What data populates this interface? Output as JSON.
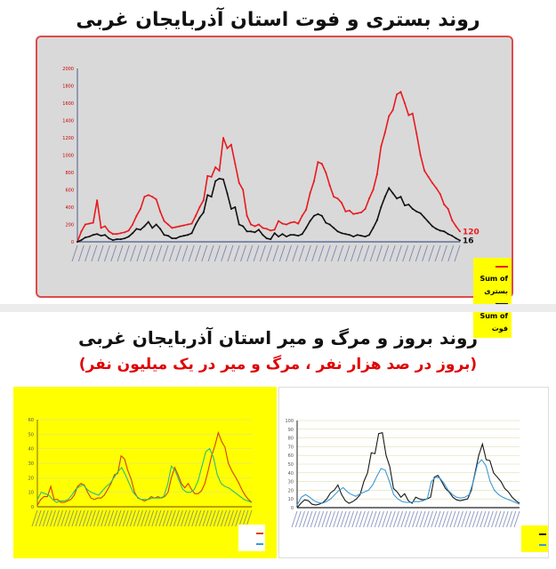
{
  "titles": {
    "top": "روند بستری و فوت استان آذربایجان غربی",
    "bottom": "روند بروز و مرگ و میر استان آذربایجان غربی",
    "bottom_sub": "(بروز در صد هزار نفر ، مرگ و میر در یک میلیون نفر)"
  },
  "chart_data": [
    {
      "type": "line",
      "ylim": [
        0,
        2000
      ],
      "yticks": [
        0,
        200,
        400,
        600,
        800,
        1000,
        1200,
        1400,
        1600,
        1800,
        2000
      ],
      "grid": false,
      "legend": "bottom-right",
      "series": [
        {
          "name": "Sum of بستری",
          "color": "#e8191e",
          "end_label": "120",
          "values": [
            0,
            120,
            200,
            210,
            220,
            480,
            160,
            180,
            120,
            90,
            90,
            100,
            110,
            130,
            200,
            300,
            380,
            520,
            540,
            520,
            490,
            350,
            240,
            200,
            160,
            170,
            180,
            190,
            200,
            210,
            300,
            400,
            480,
            760,
            750,
            860,
            820,
            1200,
            1080,
            1120,
            900,
            680,
            600,
            300,
            200,
            180,
            200,
            160,
            150,
            130,
            140,
            240,
            210,
            200,
            220,
            230,
            210,
            300,
            370,
            560,
            700,
            920,
            900,
            800,
            650,
            520,
            500,
            450,
            350,
            360,
            320,
            330,
            340,
            380,
            500,
            600,
            780,
            1100,
            1260,
            1450,
            1520,
            1700,
            1730,
            1600,
            1460,
            1480,
            1250,
            1000,
            820,
            750,
            680,
            620,
            550,
            430,
            380,
            250,
            180,
            120
          ]
        },
        {
          "name": "Sum of فوت",
          "color": "#111111",
          "end_label": "16",
          "values": [
            0,
            20,
            50,
            60,
            80,
            90,
            70,
            80,
            40,
            20,
            30,
            30,
            40,
            60,
            100,
            150,
            140,
            180,
            230,
            160,
            200,
            150,
            80,
            70,
            40,
            40,
            60,
            70,
            80,
            100,
            200,
            280,
            340,
            540,
            520,
            700,
            730,
            720,
            560,
            380,
            400,
            200,
            180,
            120,
            120,
            110,
            140,
            80,
            40,
            30,
            100,
            60,
            90,
            60,
            80,
            80,
            70,
            90,
            160,
            240,
            300,
            320,
            300,
            220,
            200,
            160,
            120,
            100,
            90,
            80,
            60,
            80,
            70,
            60,
            80,
            160,
            250,
            400,
            520,
            620,
            560,
            500,
            520,
            420,
            430,
            380,
            350,
            330,
            280,
            230,
            180,
            150,
            130,
            120,
            90,
            70,
            40,
            16
          ]
        }
      ]
    },
    {
      "type": "line",
      "ylim": [
        0,
        60
      ],
      "yticks": [
        0,
        10,
        20,
        30,
        40,
        50,
        60
      ],
      "grid": true,
      "legend": "right",
      "series": [
        {
          "color": "#d2400a",
          "values": [
            1,
            5,
            7,
            7,
            14,
            5,
            5,
            3,
            3,
            4,
            5,
            8,
            14,
            16,
            15,
            10,
            6,
            5,
            6,
            6,
            8,
            12,
            16,
            22,
            23,
            35,
            33,
            25,
            19,
            10,
            6,
            5,
            4,
            5,
            7,
            6,
            7,
            6,
            7,
            10,
            20,
            27,
            22,
            16,
            13,
            16,
            12,
            9,
            9,
            11,
            16,
            25,
            35,
            42,
            51,
            45,
            41,
            30,
            25,
            21,
            17,
            12,
            8,
            5,
            3
          ]
        },
        {
          "color": "#2bbf7a",
          "values": [
            5,
            10,
            9,
            8,
            5,
            3,
            4,
            4,
            5,
            8,
            12,
            14,
            15,
            12,
            10,
            9,
            8,
            11,
            14,
            16,
            20,
            24,
            27,
            22,
            16,
            10,
            7,
            5,
            5,
            5,
            6,
            6,
            6,
            7,
            15,
            28,
            25,
            18,
            12,
            10,
            10,
            12,
            18,
            28,
            38,
            40,
            34,
            22,
            16,
            14,
            13,
            11,
            9,
            7,
            5,
            4,
            3
          ]
        }
      ]
    },
    {
      "type": "line",
      "ylim": [
        0,
        100
      ],
      "yticks": [
        0,
        10,
        20,
        30,
        40,
        50,
        60,
        70,
        80,
        90,
        100
      ],
      "grid": true,
      "legend": "right",
      "series": [
        {
          "color": "#1a1a1a",
          "values": [
            0,
            5,
            9,
            8,
            4,
            3,
            4,
            6,
            10,
            17,
            20,
            26,
            15,
            8,
            5,
            7,
            10,
            15,
            30,
            40,
            63,
            62,
            85,
            86,
            60,
            47,
            22,
            18,
            12,
            16,
            8,
            5,
            12,
            10,
            9,
            10,
            12,
            35,
            37,
            30,
            22,
            18,
            12,
            9,
            8,
            9,
            10,
            20,
            40,
            60,
            73,
            55,
            54,
            40,
            35,
            30,
            22,
            18,
            12,
            8,
            5
          ]
        },
        {
          "color": "#3a9ad9",
          "values": [
            3,
            12,
            15,
            12,
            8,
            6,
            5,
            7,
            10,
            15,
            20,
            23,
            18,
            15,
            13,
            16,
            18,
            20,
            26,
            36,
            45,
            43,
            30,
            15,
            10,
            7,
            6,
            6,
            7,
            7,
            8,
            10,
            30,
            35,
            34,
            28,
            20,
            15,
            12,
            11,
            12,
            15,
            30,
            50,
            55,
            48,
            30,
            20,
            15,
            12,
            10,
            8,
            6,
            4
          ]
        }
      ]
    }
  ]
}
